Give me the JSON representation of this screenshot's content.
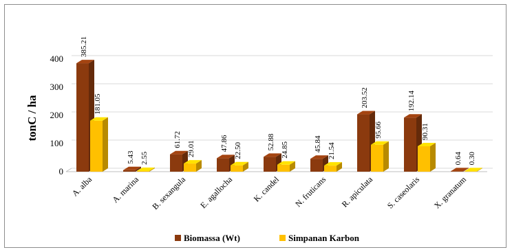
{
  "chart_data": {
    "type": "bar",
    "ylabel": "tonC / ha",
    "ylim": [
      0,
      400
    ],
    "yticks": [
      "0",
      "100",
      "200",
      "300",
      "400"
    ],
    "grid": true,
    "legend_position": "bottom",
    "categories": [
      "A. alba",
      "A. marina",
      "B. sexangula",
      "E. agallocha",
      "K. candel",
      "N. fruticans",
      "R. apiculata",
      "S. caseolaris",
      "X. granatum"
    ],
    "series": [
      {
        "name": "Biomassa (Wt)",
        "color": "#8B3A0E",
        "values": [
          385.21,
          5.43,
          61.72,
          47.86,
          52.88,
          45.84,
          203.52,
          192.14,
          0.64
        ],
        "labels": [
          "385.21",
          "5.43",
          "61.72",
          "47.86",
          "52.88",
          "45.84",
          "203.52",
          "192.14",
          "0.64"
        ]
      },
      {
        "name": "Simpanan Karbon",
        "color": "#FFC000",
        "values": [
          181.05,
          2.55,
          29.01,
          22.5,
          24.85,
          21.54,
          95.66,
          90.31,
          0.3
        ],
        "labels": [
          "181.05",
          "2.55",
          "29.01",
          "22.50",
          "24.85",
          "21.54",
          "95.66",
          "90.31",
          "0.30"
        ]
      }
    ]
  }
}
